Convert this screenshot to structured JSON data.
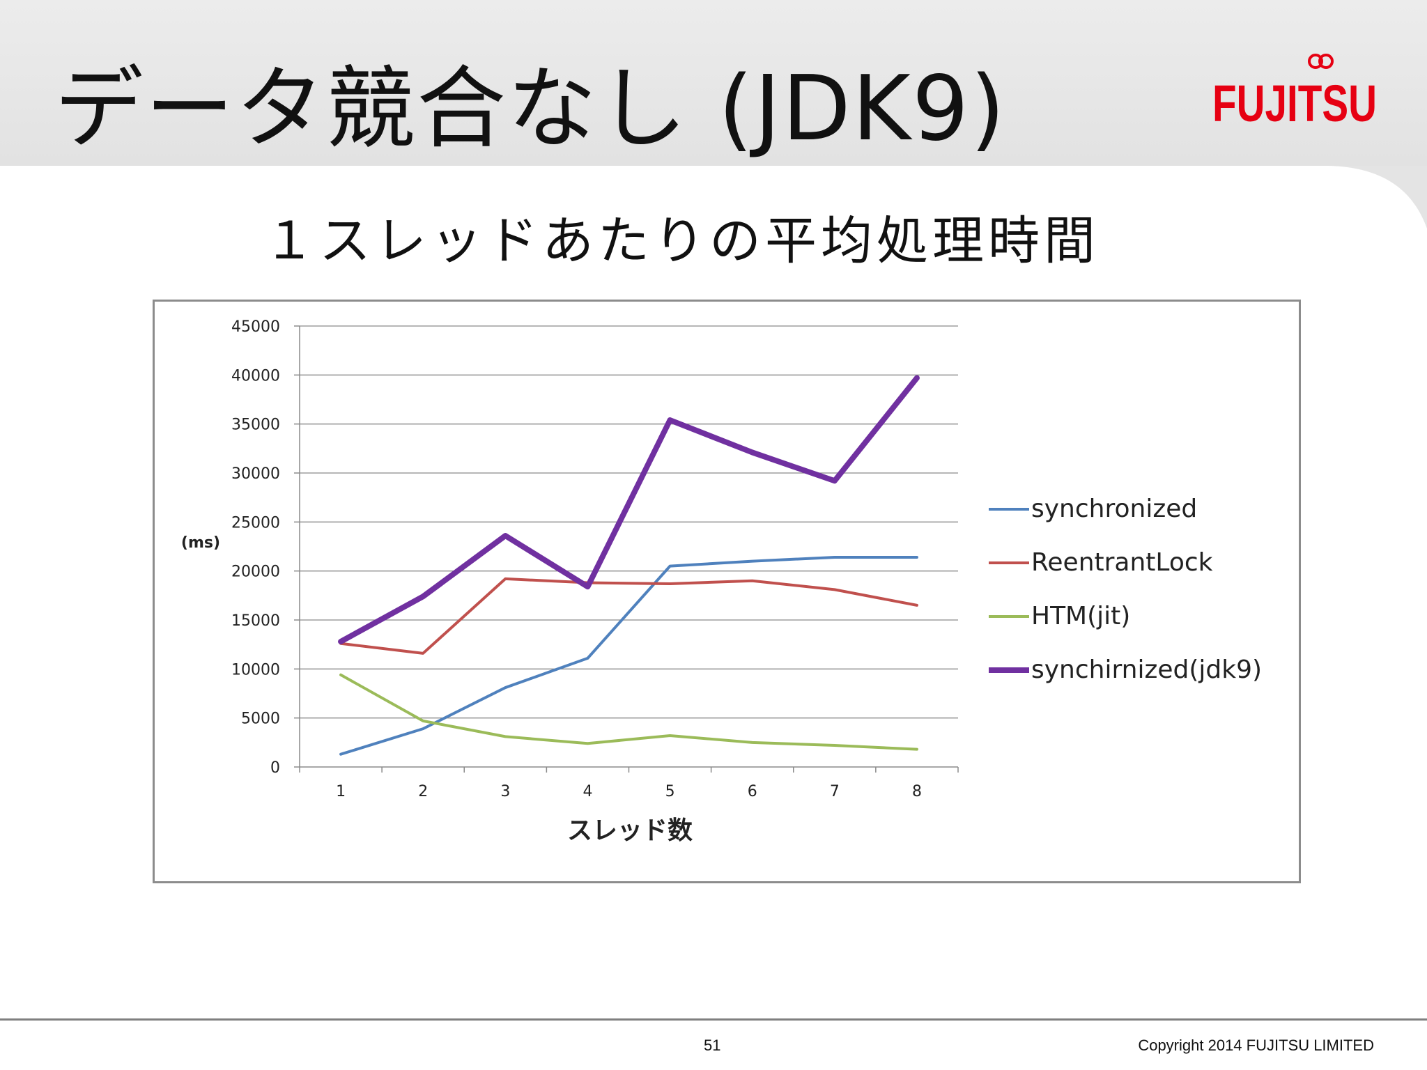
{
  "slide": {
    "title": "データ競合なし (JDK9)",
    "subtitle": "１スレッドあたりの平均処理時間",
    "page_number": "51",
    "copyright": "Copyright 2014 FUJITSU LIMITED",
    "logo_text": "FUJITSU",
    "logo_color": "#e60012"
  },
  "chart_data": {
    "type": "line",
    "title": "",
    "xlabel": "スレッド数",
    "ylabel": "(ms)",
    "x": [
      1,
      2,
      3,
      4,
      5,
      6,
      7,
      8
    ],
    "ylim": [
      0,
      45000
    ],
    "yticks": [
      0,
      5000,
      10000,
      15000,
      20000,
      25000,
      30000,
      35000,
      40000,
      45000
    ],
    "grid": true,
    "legend_position": "right",
    "series": [
      {
        "name": "synchronized",
        "color": "#4f81bd",
        "thick": false,
        "values": [
          1300,
          3900,
          8100,
          11100,
          20500,
          21000,
          21400,
          21400
        ]
      },
      {
        "name": "ReentrantLock",
        "color": "#c0504d",
        "thick": false,
        "values": [
          12600,
          11600,
          19200,
          18800,
          18700,
          19000,
          18100,
          16500
        ]
      },
      {
        "name": "HTM(jit)",
        "color": "#9bbb59",
        "thick": false,
        "values": [
          9400,
          4700,
          3100,
          2400,
          3200,
          2500,
          2200,
          1800
        ]
      },
      {
        "name": "synchirnized(jdk9)",
        "color": "#7030a0",
        "thick": true,
        "values": [
          12800,
          17400,
          23600,
          18400,
          35400,
          32100,
          29200,
          39700
        ]
      }
    ]
  }
}
